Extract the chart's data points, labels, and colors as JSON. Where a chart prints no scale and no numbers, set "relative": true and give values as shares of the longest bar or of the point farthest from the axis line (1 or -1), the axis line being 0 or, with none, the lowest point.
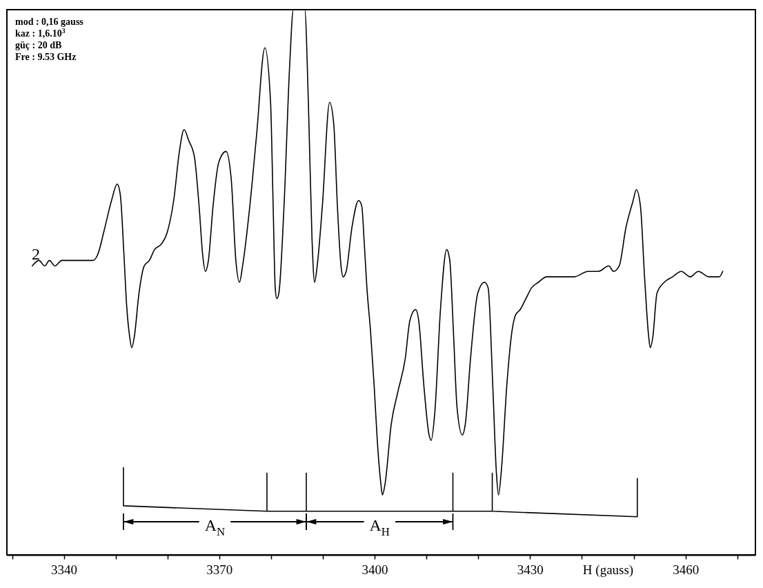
{
  "chart_data": {
    "type": "line",
    "relative": true,
    "xlabel": "H (gauss)",
    "line_style": "solid",
    "xlim": [
      3329,
      3473.5
    ],
    "xticks": [
      {
        "value": 3330,
        "label": null
      },
      3340,
      {
        "value": 3350,
        "label": null
      },
      {
        "value": 3360,
        "label": null
      },
      3370,
      {
        "value": 3380,
        "label": null
      },
      {
        "value": 3390,
        "label": null
      },
      3400,
      {
        "value": 3410,
        "label": null
      },
      {
        "value": 3420,
        "label": null
      },
      3430,
      {
        "value": 3440,
        "label": null
      },
      {
        "value": 3450,
        "label": null
      },
      3460,
      {
        "value": 3470,
        "label": null
      }
    ],
    "annotations": [
      "mod : 0,16 gauss",
      "kaz : 1,6.10$^{3}$",
      "güç : 20  dB",
      "Fre : 9.53 GHz",
      "2",
      "A$_{N}$",
      "A$_{H}$"
    ],
    "series": [
      {
        "color": "#000000",
        "x": [
          3333.9,
          3335.2,
          3336.3,
          3337.2,
          3338.3,
          3339.6,
          3340.9,
          3342.5,
          3344.1,
          3345.6,
          3346.5,
          3347.9,
          3349.2,
          3350.3,
          3350.9,
          3351.6,
          3352.1,
          3352.7,
          3353.1,
          3353.6,
          3354.5,
          3355.5,
          3356.5,
          3357.5,
          3358.8,
          3359.9,
          3361.2,
          3362.3,
          3363.2,
          3364.1,
          3365.2,
          3366.1,
          3366.8,
          3367.3,
          3367.9,
          3368.8,
          3369.9,
          3371.3,
          3372.3,
          3373.2,
          3373.9,
          3374.5,
          3375.9,
          3377.2,
          3378.8,
          3379.9,
          3380.4,
          3380.8,
          3381.1,
          3381.5,
          3382.5,
          3383.6,
          3384.3,
          3384.9,
          3386.5,
          3387.2,
          3387.9,
          3388.4,
          3388.9,
          3389.9,
          3391.3,
          3392.1,
          3392.8,
          3393.5,
          3393.9,
          3394.5,
          3395.6,
          3396.9,
          3397.5,
          3398.0,
          3398.5,
          3399.2,
          3399.9,
          3400.5,
          3401.2,
          3401.5,
          3402.0,
          3403.2,
          3404.5,
          3405.9,
          3406.8,
          3407.9,
          3408.5,
          3409.5,
          3410.5,
          3410.9,
          3411.6,
          3412.7,
          3413.9,
          3414.5,
          3415.2,
          3415.9,
          3416.9,
          3417.5,
          3418.5,
          3419.9,
          3421.2,
          3421.9,
          3422.8,
          3423.5,
          3423.9,
          3424.5,
          3425.5,
          3426.5,
          3427.2,
          3428.1,
          3429.2,
          3430.3,
          3431.6,
          3433.2,
          3435.9,
          3438.5,
          3441.2,
          3443.2,
          3445.2,
          3446.1,
          3447.2,
          3448.5,
          3449.9,
          3450.5,
          3451.3,
          3452.1,
          3452.9,
          3453.2,
          3453.7,
          3454.5,
          3455.9,
          3457.5,
          3459.2,
          3460.9,
          3462.5,
          3464.5,
          3466.5,
          3467.2
        ],
        "values": [
          0.53,
          0.54,
          0.53,
          0.54,
          0.53,
          0.54,
          0.54,
          0.54,
          0.54,
          0.54,
          0.55,
          0.6,
          0.65,
          0.68,
          0.66,
          0.55,
          0.46,
          0.4,
          0.38,
          0.4,
          0.48,
          0.53,
          0.54,
          0.56,
          0.57,
          0.59,
          0.65,
          0.74,
          0.78,
          0.76,
          0.73,
          0.64,
          0.55,
          0.52,
          0.54,
          0.64,
          0.72,
          0.74,
          0.69,
          0.54,
          0.5,
          0.53,
          0.64,
          0.77,
          0.93,
          0.83,
          0.64,
          0.49,
          0.47,
          0.48,
          0.64,
          0.9,
          1.0,
          1.0,
          1.0,
          0.83,
          0.58,
          0.5,
          0.53,
          0.64,
          0.83,
          0.79,
          0.64,
          0.53,
          0.51,
          0.52,
          0.6,
          0.65,
          0.64,
          0.57,
          0.49,
          0.41,
          0.31,
          0.21,
          0.13,
          0.11,
          0.13,
          0.24,
          0.3,
          0.36,
          0.43,
          0.45,
          0.43,
          0.31,
          0.22,
          0.21,
          0.26,
          0.45,
          0.56,
          0.54,
          0.41,
          0.27,
          0.22,
          0.24,
          0.36,
          0.48,
          0.5,
          0.49,
          0.31,
          0.15,
          0.11,
          0.16,
          0.31,
          0.41,
          0.44,
          0.45,
          0.47,
          0.49,
          0.5,
          0.51,
          0.51,
          0.51,
          0.52,
          0.52,
          0.53,
          0.52,
          0.53,
          0.6,
          0.65,
          0.67,
          0.64,
          0.51,
          0.4,
          0.38,
          0.4,
          0.48,
          0.5,
          0.51,
          0.52,
          0.51,
          0.52,
          0.51,
          0.51,
          0.52
        ]
      },
      {
        "color": "#000000",
        "x": [
          3351.5,
          3351.5,
          3379.2,
          3379.2,
          3379.2,
          3386.8,
          3386.8,
          3386.8,
          3415.1,
          3415.1,
          3415.1,
          3422.7,
          3422.7,
          3422.7,
          3450.7,
          3450.7
        ],
        "values": [
          0.16,
          0.09,
          0.08,
          0.15,
          0.08,
          0.08,
          0.15,
          0.08,
          0.08,
          0.15,
          0.08,
          0.08,
          0.15,
          0.08,
          0.07,
          0.14
        ]
      }
    ]
  }
}
